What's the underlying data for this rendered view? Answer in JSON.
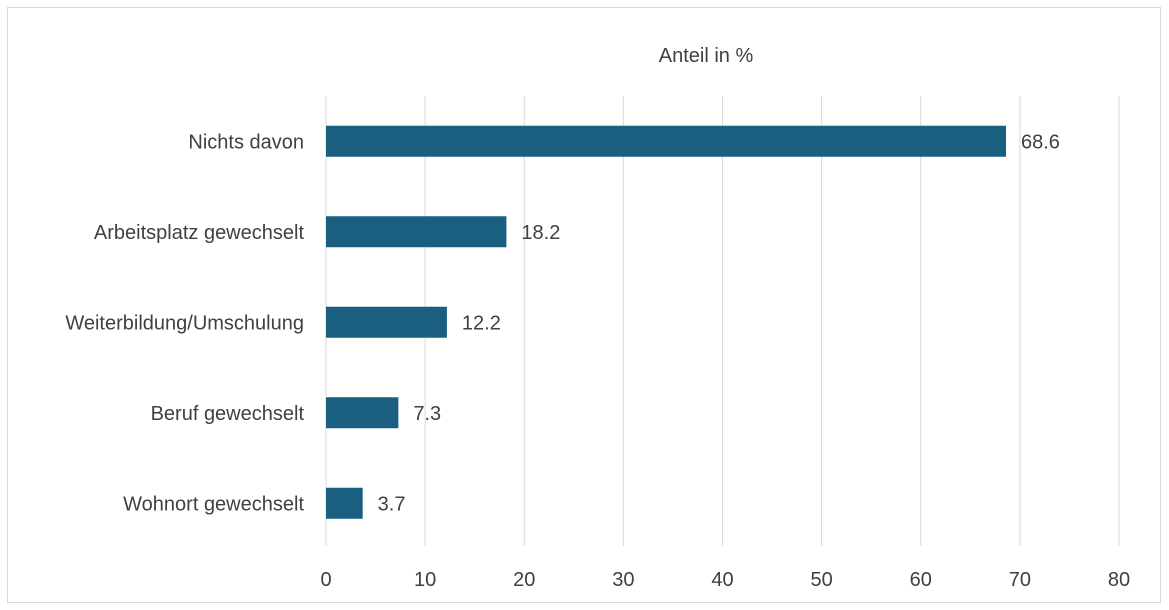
{
  "chart_data": {
    "type": "bar",
    "orientation": "horizontal",
    "title": "Anteil in %",
    "categories": [
      "Nichts davon",
      "Arbeitsplatz gewechselt",
      "Weiterbildung/Umschulung",
      "Beruf gewechselt",
      "Wohnort gewechselt"
    ],
    "values": [
      68.6,
      18.2,
      12.2,
      7.3,
      3.7
    ],
    "data_labels": [
      "68.6",
      "18.2",
      "12.2",
      "7.3",
      "3.7"
    ],
    "xlim": [
      0,
      80
    ],
    "x_ticks": [
      0,
      10,
      20,
      30,
      40,
      50,
      60,
      70,
      80
    ],
    "x_tick_labels": [
      "0",
      "10",
      "20",
      "30",
      "40",
      "50",
      "60",
      "70",
      "80"
    ],
    "grid": "vertical",
    "legend": "none",
    "bar_color": "#1a5e80",
    "grid_color": "#d9d9d9"
  }
}
